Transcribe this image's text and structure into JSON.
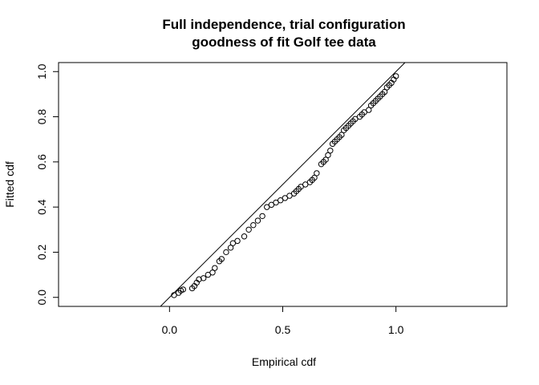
{
  "chart_data": {
    "type": "scatter",
    "title_line1": "Full independence, trial configuration",
    "title_line2": "goodness of fit Golf tee data",
    "xlabel": "Empirical cdf",
    "ylabel": "Fitted cdf",
    "xlim": [
      -0.49,
      1.49
    ],
    "ylim": [
      -0.04,
      1.04
    ],
    "xticks": [
      0.0,
      0.5,
      1.0
    ],
    "xtick_labels": [
      "0.0",
      "0.5",
      "1.0"
    ],
    "yticks": [
      0.0,
      0.2,
      0.4,
      0.6,
      0.8,
      1.0
    ],
    "ytick_labels": [
      "0.0",
      "0.2",
      "0.4",
      "0.6",
      "0.8",
      "1.0"
    ],
    "grid": false,
    "reference_line": {
      "intercept": 0,
      "slope": 1
    },
    "points": [
      [
        0.02,
        0.01
      ],
      [
        0.04,
        0.02
      ],
      [
        0.05,
        0.03
      ],
      [
        0.06,
        0.035
      ],
      [
        0.1,
        0.04
      ],
      [
        0.11,
        0.05
      ],
      [
        0.12,
        0.065
      ],
      [
        0.13,
        0.08
      ],
      [
        0.15,
        0.085
      ],
      [
        0.17,
        0.1
      ],
      [
        0.19,
        0.11
      ],
      [
        0.2,
        0.13
      ],
      [
        0.22,
        0.16
      ],
      [
        0.23,
        0.17
      ],
      [
        0.25,
        0.2
      ],
      [
        0.27,
        0.22
      ],
      [
        0.28,
        0.24
      ],
      [
        0.3,
        0.25
      ],
      [
        0.33,
        0.27
      ],
      [
        0.35,
        0.3
      ],
      [
        0.37,
        0.32
      ],
      [
        0.39,
        0.34
      ],
      [
        0.41,
        0.36
      ],
      [
        0.43,
        0.4
      ],
      [
        0.45,
        0.41
      ],
      [
        0.47,
        0.42
      ],
      [
        0.49,
        0.43
      ],
      [
        0.51,
        0.44
      ],
      [
        0.53,
        0.45
      ],
      [
        0.55,
        0.46
      ],
      [
        0.56,
        0.47
      ],
      [
        0.57,
        0.48
      ],
      [
        0.58,
        0.49
      ],
      [
        0.6,
        0.5
      ],
      [
        0.62,
        0.51
      ],
      [
        0.63,
        0.52
      ],
      [
        0.64,
        0.53
      ],
      [
        0.65,
        0.55
      ],
      [
        0.67,
        0.59
      ],
      [
        0.68,
        0.6
      ],
      [
        0.69,
        0.61
      ],
      [
        0.7,
        0.63
      ],
      [
        0.71,
        0.65
      ],
      [
        0.72,
        0.68
      ],
      [
        0.73,
        0.69
      ],
      [
        0.74,
        0.7
      ],
      [
        0.75,
        0.71
      ],
      [
        0.76,
        0.72
      ],
      [
        0.77,
        0.74
      ],
      [
        0.78,
        0.75
      ],
      [
        0.79,
        0.76
      ],
      [
        0.8,
        0.77
      ],
      [
        0.81,
        0.78
      ],
      [
        0.82,
        0.79
      ],
      [
        0.84,
        0.8
      ],
      [
        0.85,
        0.81
      ],
      [
        0.86,
        0.82
      ],
      [
        0.88,
        0.83
      ],
      [
        0.89,
        0.85
      ],
      [
        0.9,
        0.86
      ],
      [
        0.91,
        0.87
      ],
      [
        0.92,
        0.88
      ],
      [
        0.93,
        0.89
      ],
      [
        0.94,
        0.9
      ],
      [
        0.95,
        0.91
      ],
      [
        0.96,
        0.93
      ],
      [
        0.97,
        0.94
      ],
      [
        0.98,
        0.95
      ],
      [
        0.99,
        0.965
      ],
      [
        1.0,
        0.98
      ]
    ]
  }
}
